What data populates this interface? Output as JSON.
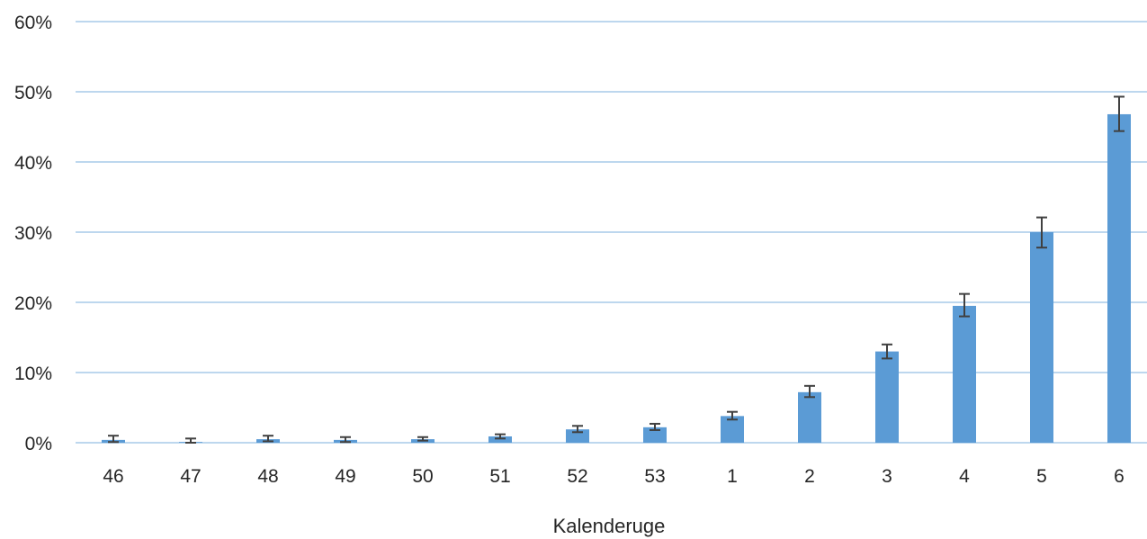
{
  "chart_data": {
    "type": "bar",
    "title": "",
    "xlabel": "Kalenderuge",
    "ylabel": "",
    "ylim": [
      0,
      0.6
    ],
    "yticks": [
      0,
      0.1,
      0.2,
      0.3,
      0.4,
      0.5,
      0.6
    ],
    "ytick_labels": [
      "0%",
      "10%",
      "20%",
      "30%",
      "40%",
      "50%",
      "60%"
    ],
    "grid": true,
    "legend": "none",
    "categories": [
      "46",
      "47",
      "48",
      "49",
      "50",
      "51",
      "52",
      "53",
      "1",
      "2",
      "3",
      "4",
      "5",
      "6"
    ],
    "values": [
      0.004,
      0.001,
      0.005,
      0.004,
      0.005,
      0.009,
      0.019,
      0.022,
      0.038,
      0.072,
      0.13,
      0.195,
      0.3,
      0.468
    ],
    "error_low": [
      0.003,
      0.001,
      0.003,
      0.003,
      0.002,
      0.003,
      0.004,
      0.004,
      0.005,
      0.007,
      0.01,
      0.015,
      0.022,
      0.024
    ],
    "error_high": [
      0.006,
      0.005,
      0.005,
      0.004,
      0.003,
      0.003,
      0.005,
      0.005,
      0.006,
      0.009,
      0.01,
      0.017,
      0.021,
      0.025
    ],
    "colors": {
      "bar": "#5b9bd5",
      "grid": "#bdd7ee",
      "error_bar": "#404040",
      "text": "#262626"
    }
  }
}
